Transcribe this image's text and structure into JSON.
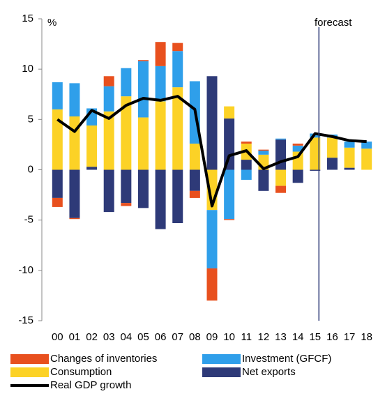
{
  "chart_data": {
    "type": "bar",
    "stacked": true,
    "y_unit_label": "%",
    "annotation": "forecast",
    "forecast_from": "15",
    "categories": [
      "00",
      "01",
      "02",
      "03",
      "04",
      "05",
      "06",
      "07",
      "08",
      "09",
      "10",
      "11",
      "12",
      "13",
      "14",
      "15",
      "16",
      "17",
      "18"
    ],
    "ylim": [
      -15,
      15
    ],
    "yticks": [
      -15,
      -10,
      -5,
      0,
      5,
      10,
      15
    ],
    "grid": false,
    "series": [
      {
        "name": "Net exports",
        "color": "#2e3a78",
        "values": [
          -2.8,
          -4.8,
          0.3,
          -4.2,
          -3.3,
          -3.8,
          -5.9,
          -5.3,
          -2.1,
          9.3,
          5.1,
          1.0,
          -2.1,
          3.0,
          -1.3,
          -0.1,
          1.2,
          0.2,
          0
        ]
      },
      {
        "name": "Consumption",
        "color": "#fcd226",
        "values": [
          6.0,
          5.3,
          4.1,
          5.8,
          7.3,
          5.2,
          6.8,
          8.2,
          2.6,
          -4.0,
          1.2,
          1.6,
          1.5,
          -1.6,
          1.8,
          3.2,
          2.0,
          2.0,
          2.1
        ]
      },
      {
        "name": "Investment (GFCF)",
        "color": "#2f9fea",
        "values": [
          2.7,
          3.3,
          1.7,
          2.5,
          2.8,
          5.6,
          3.5,
          3.6,
          6.2,
          -5.8,
          -4.9,
          -1.0,
          0.4,
          0.1,
          0.6,
          0.4,
          0.3,
          0.6,
          0.7
        ]
      },
      {
        "name": "Changes of inventories",
        "color": "#e8501e",
        "values": [
          -0.9,
          -0.1,
          0,
          1.0,
          -0.3,
          0.1,
          2.4,
          0.8,
          -0.7,
          -3.2,
          -0.1,
          0.2,
          0.1,
          -0.7,
          0.2,
          0,
          0,
          0,
          0
        ]
      },
      {
        "name": "Real GDP growth",
        "color": "#000000",
        "type": "line",
        "values": [
          5.0,
          3.8,
          5.9,
          5.1,
          6.4,
          7.1,
          6.9,
          7.3,
          6.0,
          -3.6,
          1.4,
          1.9,
          0.1,
          0.8,
          1.3,
          3.6,
          3.3,
          2.9,
          2.8
        ]
      }
    ],
    "legend_order": [
      3,
      2,
      1,
      0,
      4
    ]
  }
}
